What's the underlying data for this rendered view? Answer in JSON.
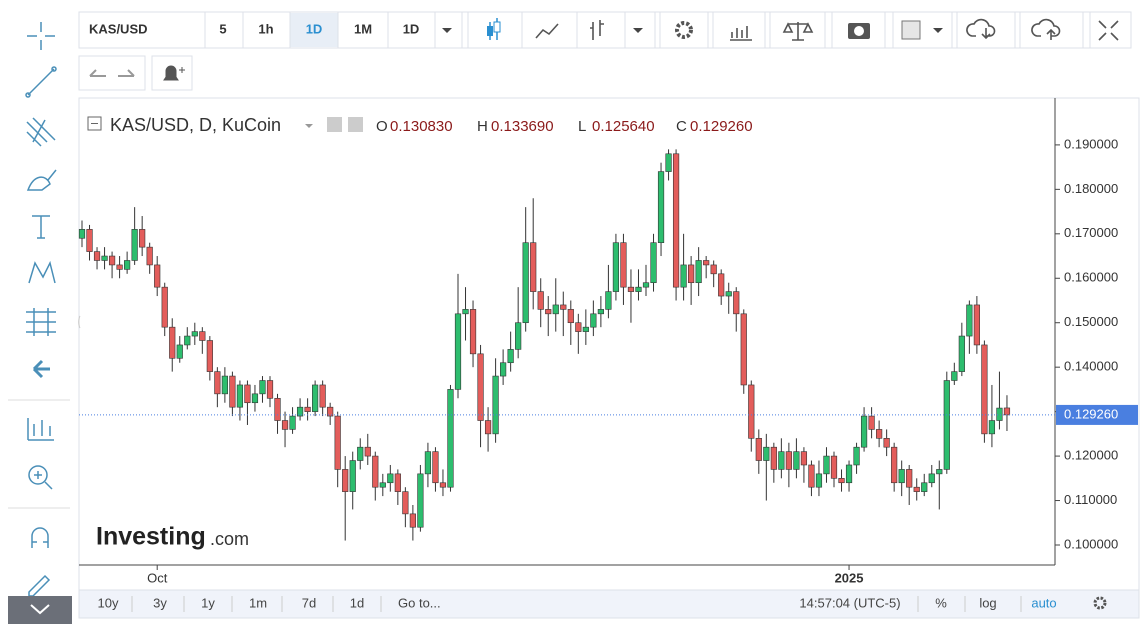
{
  "toolbar": {
    "symbol": "KAS/USD",
    "intervals": [
      "5",
      "1h",
      "1D",
      "1M",
      "1D"
    ]
  },
  "bottom_bar": {
    "ranges": [
      "10y",
      "3y",
      "1y",
      "1m",
      "7d",
      "1d"
    ],
    "goto": "Go to...",
    "clock": "14:57:04 (UTC-5)",
    "options": [
      "%",
      "log",
      "auto"
    ]
  },
  "watermark": {
    "brand": "Investing",
    "suffix": ".com"
  },
  "chart_data": {
    "type": "candlestick",
    "title": "KAS/USD, D, KuCoin",
    "ohlc_labels": [
      "O",
      "H",
      "L",
      "C"
    ],
    "ohlc_value_labels": [
      "0.130830",
      "0.133690",
      "0.125640",
      "0.129260"
    ],
    "colors": {
      "up": "#2dbd6e",
      "down": "#e35d5b",
      "outline": "#333333",
      "last_price": "#4a7fe0"
    },
    "ylim": [
      0.0955,
      0.2001
    ],
    "yticks": [
      {
        "value": 0.1,
        "label": "0.100000"
      },
      {
        "value": 0.11,
        "label": "0.110000"
      },
      {
        "value": 0.12,
        "label": "0.120000"
      },
      {
        "value": 0.13,
        "label": "0.130000"
      },
      {
        "value": 0.14,
        "label": "0.140000"
      },
      {
        "value": 0.15,
        "label": "0.150000"
      },
      {
        "value": 0.16,
        "label": "0.160000"
      },
      {
        "value": 0.17,
        "label": "0.170000"
      },
      {
        "value": 0.18,
        "label": "0.180000"
      },
      {
        "value": 0.19,
        "label": "0.190000"
      }
    ],
    "categories": [
      null,
      null,
      null,
      null,
      null,
      null,
      null,
      null,
      null,
      null,
      "Oct",
      null,
      null,
      null,
      null,
      null,
      null,
      null,
      null,
      null,
      null,
      null,
      null,
      null,
      null,
      null,
      null,
      null,
      null,
      null,
      null,
      null,
      null,
      null,
      null,
      null,
      null,
      null,
      null,
      null,
      null,
      null,
      null,
      null,
      null,
      null,
      null,
      null,
      null,
      null,
      null,
      null,
      null,
      null,
      null,
      null,
      null,
      null,
      null,
      null,
      null,
      null,
      null,
      null,
      null,
      null,
      null,
      null,
      null,
      null,
      null,
      null,
      null,
      null,
      null,
      null,
      null,
      null,
      null,
      null,
      null,
      null,
      null,
      null,
      null,
      null,
      null,
      null,
      null,
      null,
      null,
      null,
      null,
      null,
      null,
      null,
      null,
      null,
      null,
      null,
      null,
      null,
      "2025",
      null,
      null,
      null,
      null,
      null,
      null,
      null,
      null,
      null,
      null,
      null,
      null,
      null,
      null,
      null,
      null,
      null,
      null,
      null,
      null,
      null
    ],
    "ohlc": [
      [
        0.169,
        0.173,
        0.167,
        0.171
      ],
      [
        0.171,
        0.172,
        0.164,
        0.166
      ],
      [
        0.166,
        0.167,
        0.162,
        0.164
      ],
      [
        0.164,
        0.167,
        0.162,
        0.165
      ],
      [
        0.165,
        0.166,
        0.16,
        0.163
      ],
      [
        0.163,
        0.165,
        0.16,
        0.162
      ],
      [
        0.162,
        0.166,
        0.161,
        0.164
      ],
      [
        0.164,
        0.176,
        0.163,
        0.171
      ],
      [
        0.171,
        0.174,
        0.165,
        0.167
      ],
      [
        0.167,
        0.168,
        0.161,
        0.163
      ],
      [
        0.163,
        0.165,
        0.156,
        0.158
      ],
      [
        0.158,
        0.159,
        0.147,
        0.149
      ],
      [
        0.149,
        0.151,
        0.139,
        0.142
      ],
      [
        0.142,
        0.147,
        0.141,
        0.145
      ],
      [
        0.145,
        0.149,
        0.144,
        0.147
      ],
      [
        0.147,
        0.15,
        0.145,
        0.148
      ],
      [
        0.148,
        0.149,
        0.143,
        0.146
      ],
      [
        0.146,
        0.147,
        0.137,
        0.139
      ],
      [
        0.139,
        0.14,
        0.131,
        0.134
      ],
      [
        0.134,
        0.14,
        0.132,
        0.138
      ],
      [
        0.138,
        0.139,
        0.129,
        0.131
      ],
      [
        0.131,
        0.137,
        0.128,
        0.136
      ],
      [
        0.136,
        0.137,
        0.127,
        0.132
      ],
      [
        0.132,
        0.136,
        0.13,
        0.134
      ],
      [
        0.134,
        0.138,
        0.132,
        0.137
      ],
      [
        0.137,
        0.138,
        0.131,
        0.133
      ],
      [
        0.133,
        0.134,
        0.125,
        0.128
      ],
      [
        0.128,
        0.13,
        0.122,
        0.126
      ],
      [
        0.126,
        0.131,
        0.125,
        0.129
      ],
      [
        0.129,
        0.133,
        0.128,
        0.131
      ],
      [
        0.131,
        0.133,
        0.128,
        0.13
      ],
      [
        0.13,
        0.137,
        0.129,
        0.136
      ],
      [
        0.136,
        0.137,
        0.129,
        0.131
      ],
      [
        0.131,
        0.132,
        0.127,
        0.129
      ],
      [
        0.129,
        0.13,
        0.113,
        0.117
      ],
      [
        0.117,
        0.12,
        0.101,
        0.112
      ],
      [
        0.112,
        0.121,
        0.108,
        0.119
      ],
      [
        0.119,
        0.124,
        0.117,
        0.122
      ],
      [
        0.122,
        0.125,
        0.118,
        0.12
      ],
      [
        0.12,
        0.121,
        0.11,
        0.113
      ],
      [
        0.113,
        0.116,
        0.111,
        0.114
      ],
      [
        0.114,
        0.118,
        0.112,
        0.116
      ],
      [
        0.116,
        0.117,
        0.109,
        0.112
      ],
      [
        0.112,
        0.113,
        0.104,
        0.107
      ],
      [
        0.107,
        0.109,
        0.101,
        0.104
      ],
      [
        0.104,
        0.118,
        0.103,
        0.116
      ],
      [
        0.116,
        0.123,
        0.113,
        0.121
      ],
      [
        0.121,
        0.122,
        0.112,
        0.114
      ],
      [
        0.114,
        0.117,
        0.111,
        0.113
      ],
      [
        0.113,
        0.136,
        0.112,
        0.135
      ],
      [
        0.135,
        0.161,
        0.133,
        0.152
      ],
      [
        0.152,
        0.158,
        0.146,
        0.153
      ],
      [
        0.153,
        0.155,
        0.14,
        0.143
      ],
      [
        0.143,
        0.145,
        0.122,
        0.128
      ],
      [
        0.128,
        0.131,
        0.121,
        0.125
      ],
      [
        0.125,
        0.142,
        0.123,
        0.138
      ],
      [
        0.138,
        0.144,
        0.136,
        0.141
      ],
      [
        0.141,
        0.148,
        0.139,
        0.144
      ],
      [
        0.144,
        0.158,
        0.142,
        0.15
      ],
      [
        0.15,
        0.176,
        0.148,
        0.168
      ],
      [
        0.168,
        0.178,
        0.153,
        0.157
      ],
      [
        0.157,
        0.16,
        0.149,
        0.153
      ],
      [
        0.153,
        0.156,
        0.147,
        0.152
      ],
      [
        0.152,
        0.16,
        0.148,
        0.154
      ],
      [
        0.154,
        0.157,
        0.147,
        0.153
      ],
      [
        0.153,
        0.155,
        0.145,
        0.15
      ],
      [
        0.15,
        0.152,
        0.143,
        0.148
      ],
      [
        0.148,
        0.153,
        0.145,
        0.149
      ],
      [
        0.149,
        0.155,
        0.147,
        0.152
      ],
      [
        0.152,
        0.156,
        0.149,
        0.153
      ],
      [
        0.153,
        0.163,
        0.151,
        0.157
      ],
      [
        0.157,
        0.17,
        0.155,
        0.168
      ],
      [
        0.168,
        0.17,
        0.154,
        0.158
      ],
      [
        0.158,
        0.162,
        0.15,
        0.157
      ],
      [
        0.157,
        0.162,
        0.155,
        0.158
      ],
      [
        0.158,
        0.163,
        0.156,
        0.159
      ],
      [
        0.159,
        0.17,
        0.157,
        0.168
      ],
      [
        0.168,
        0.186,
        0.165,
        0.184
      ],
      [
        0.184,
        0.189,
        0.182,
        0.188
      ],
      [
        0.188,
        0.189,
        0.155,
        0.158
      ],
      [
        0.158,
        0.17,
        0.155,
        0.163
      ],
      [
        0.163,
        0.165,
        0.154,
        0.159
      ],
      [
        0.159,
        0.167,
        0.156,
        0.164
      ],
      [
        0.164,
        0.165,
        0.16,
        0.163
      ],
      [
        0.163,
        0.164,
        0.158,
        0.161
      ],
      [
        0.161,
        0.162,
        0.154,
        0.156
      ],
      [
        0.156,
        0.159,
        0.152,
        0.157
      ],
      [
        0.157,
        0.158,
        0.148,
        0.152
      ],
      [
        0.152,
        0.153,
        0.134,
        0.136
      ],
      [
        0.136,
        0.137,
        0.121,
        0.124
      ],
      [
        0.124,
        0.126,
        0.116,
        0.119
      ],
      [
        0.119,
        0.125,
        0.11,
        0.122
      ],
      [
        0.122,
        0.123,
        0.114,
        0.117
      ],
      [
        0.117,
        0.124,
        0.115,
        0.121
      ],
      [
        0.121,
        0.123,
        0.113,
        0.117
      ],
      [
        0.117,
        0.124,
        0.115,
        0.121
      ],
      [
        0.121,
        0.122,
        0.114,
        0.118
      ],
      [
        0.118,
        0.119,
        0.111,
        0.113
      ],
      [
        0.113,
        0.119,
        0.111,
        0.116
      ],
      [
        0.116,
        0.122,
        0.114,
        0.12
      ],
      [
        0.12,
        0.121,
        0.113,
        0.115
      ],
      [
        0.115,
        0.117,
        0.112,
        0.114
      ],
      [
        0.114,
        0.119,
        0.112,
        0.118
      ],
      [
        0.118,
        0.123,
        0.116,
        0.122
      ],
      [
        0.122,
        0.131,
        0.121,
        0.129
      ],
      [
        0.129,
        0.131,
        0.124,
        0.126
      ],
      [
        0.126,
        0.128,
        0.122,
        0.124
      ],
      [
        0.124,
        0.126,
        0.12,
        0.122
      ],
      [
        0.122,
        0.123,
        0.112,
        0.114
      ],
      [
        0.114,
        0.119,
        0.111,
        0.117
      ],
      [
        0.117,
        0.118,
        0.109,
        0.113
      ],
      [
        0.113,
        0.115,
        0.11,
        0.112
      ],
      [
        0.112,
        0.116,
        0.111,
        0.114
      ],
      [
        0.114,
        0.118,
        0.113,
        0.116
      ],
      [
        0.116,
        0.119,
        0.108,
        0.117
      ],
      [
        0.117,
        0.139,
        0.116,
        0.137
      ],
      [
        0.137,
        0.141,
        0.136,
        0.139
      ],
      [
        0.139,
        0.15,
        0.138,
        0.147
      ],
      [
        0.147,
        0.155,
        0.143,
        0.154
      ],
      [
        0.154,
        0.156,
        0.143,
        0.145
      ],
      [
        0.145,
        0.146,
        0.123,
        0.125
      ],
      [
        0.125,
        0.136,
        0.122,
        0.128
      ],
      [
        0.128,
        0.139,
        0.126,
        0.1308
      ],
      [
        0.13083,
        0.13369,
        0.12564,
        0.12926
      ]
    ]
  }
}
